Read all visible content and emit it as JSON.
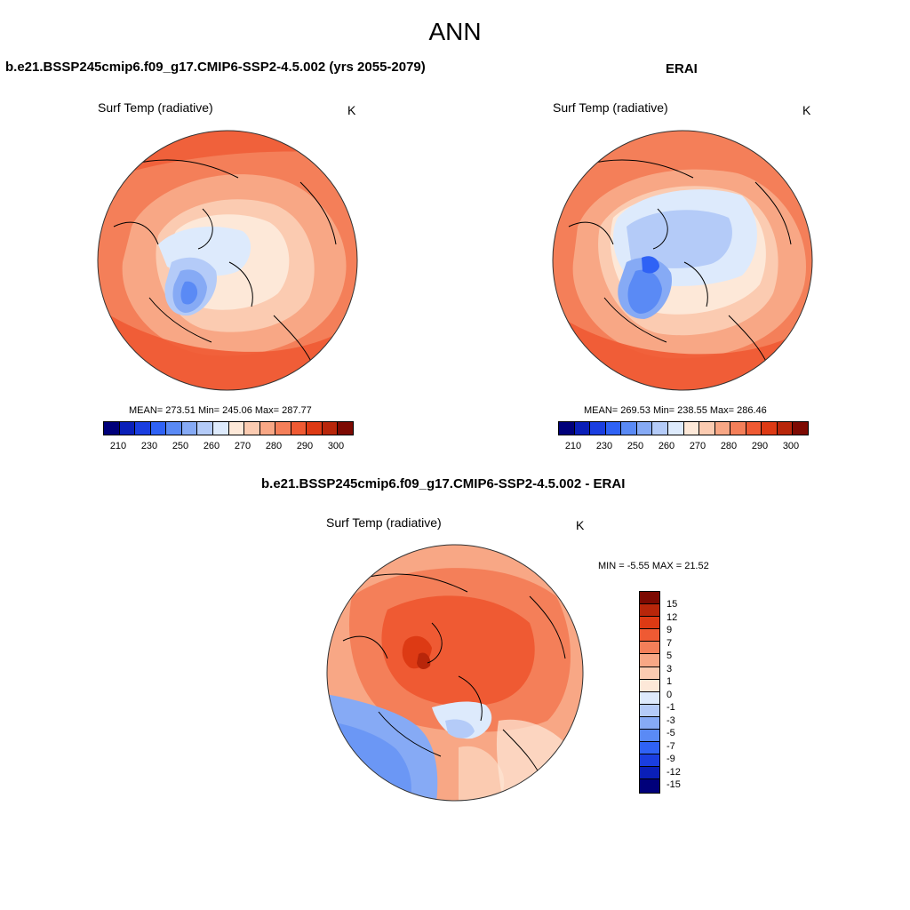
{
  "page": {
    "title": "ANN"
  },
  "panels": {
    "model": {
      "title": "b.e21.BSSP245cmip6.f09_g17.CMIP6-SSP2-4.5.002 (yrs 2055-2079)",
      "field": "Surf Temp (radiative)",
      "units": "K",
      "stats": "MEAN= 273.51  Min= 245.06  Max= 287.77"
    },
    "obs": {
      "title": "ERAI",
      "field": "Surf Temp (radiative)",
      "units": "K",
      "stats": "MEAN= 269.53  Min= 238.55  Max= 286.46"
    },
    "diff": {
      "title": "b.e21.BSSP245cmip6.f09_g17.CMIP6-SSP2-4.5.002 - ERAI",
      "field": "Surf Temp (radiative)",
      "units": "K",
      "stats": "MIN =  -5.55 MAX =  21.52"
    }
  },
  "abs_colorbar": {
    "colors": [
      "#00007a",
      "#0a1fb8",
      "#1a3ee0",
      "#2f62f5",
      "#5a8af5",
      "#86aaf5",
      "#b4cbf8",
      "#ddeafc",
      "#fde8d8",
      "#fbcbb1",
      "#f8a785",
      "#f47f59",
      "#ef5a33",
      "#dd3a14",
      "#b8260a",
      "#7d0a02"
    ],
    "ticks": [
      "210",
      "230",
      "250",
      "260",
      "270",
      "280",
      "290",
      "300"
    ]
  },
  "diff_colorbar": {
    "colors": [
      "#7d0a02",
      "#b8260a",
      "#dd3a14",
      "#ef5a33",
      "#f47f59",
      "#f8a785",
      "#fbcbb1",
      "#fde8d8",
      "#ddeafc",
      "#b4cbf8",
      "#86aaf5",
      "#5a8af5",
      "#2f62f5",
      "#1a3ee0",
      "#0a1fb8",
      "#00007a"
    ],
    "ticks": [
      "15",
      "12",
      "9",
      "7",
      "5",
      "3",
      "1",
      "0",
      "-1",
      "-3",
      "-5",
      "-7",
      "-9",
      "-12",
      "-15"
    ]
  }
}
